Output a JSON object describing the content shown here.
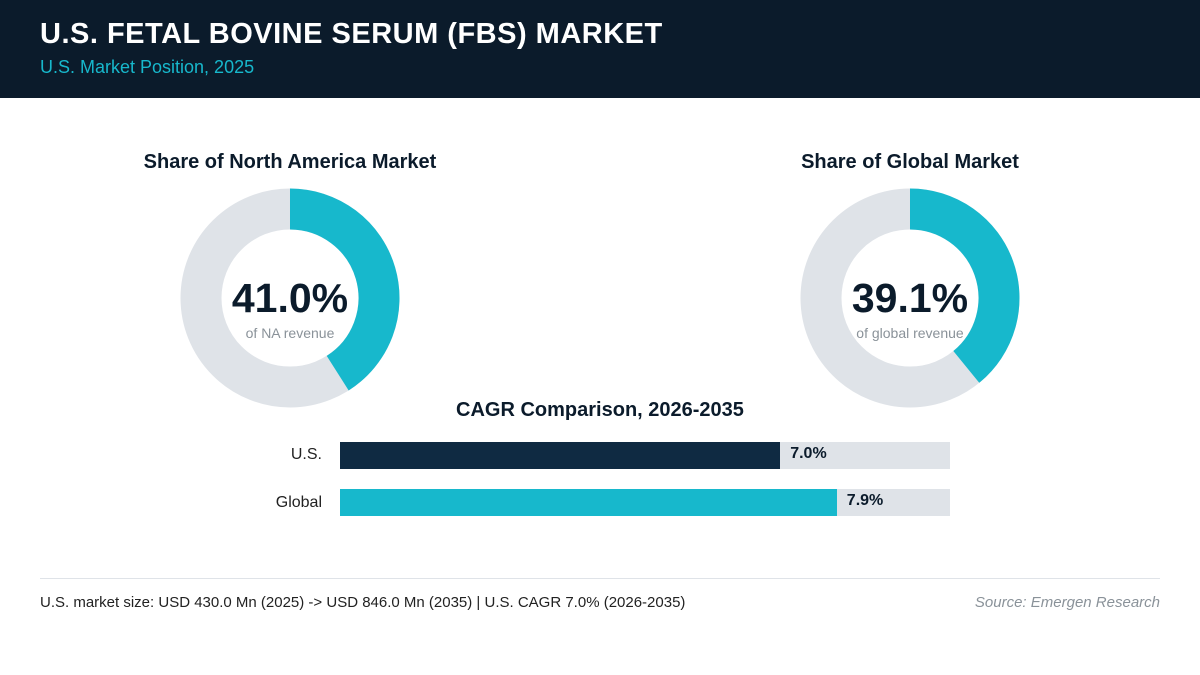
{
  "header": {
    "title": "U.S. FETAL BOVINE SERUM (FBS) MARKET",
    "subtitle": "U.S. Market Position, 2025"
  },
  "colors": {
    "header_bg": "#0b1b2b",
    "accent_teal": "#17b8cc",
    "dark_navy": "#0f2a42",
    "track_gray": "#dfe3e8"
  },
  "chart_data": [
    {
      "type": "pie",
      "title": "Share of North America Market",
      "values": [
        41.0,
        59.0
      ],
      "value_label": "41.0%",
      "caption": "of NA revenue"
    },
    {
      "type": "pie",
      "title": "Share of Global Market",
      "values": [
        39.1,
        60.9
      ],
      "value_label": "39.1%",
      "caption": "of global revenue"
    },
    {
      "type": "bar",
      "title": "CAGR Comparison, 2026-2035",
      "categories": [
        "U.S.",
        "Global"
      ],
      "values": [
        7.0,
        7.9
      ],
      "value_labels": [
        "7.0%",
        "7.9%"
      ],
      "colors": [
        "#0f2a42",
        "#17b8cc"
      ],
      "xlim": [
        0,
        9.7
      ]
    }
  ],
  "footer": {
    "summary": "U.S. market size: USD 430.0 Mn (2025) -> USD 846.0 Mn (2035)  |  U.S. CAGR 7.0% (2026-2035)",
    "source": "Source: Emergen Research"
  }
}
